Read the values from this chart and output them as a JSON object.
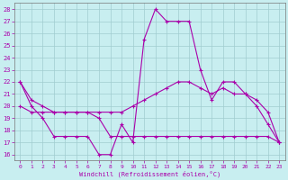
{
  "xlabel": "Windchill (Refroidissement éolien,°C)",
  "bg_color": "#c8eef0",
  "grid_color": "#a0ccd0",
  "line_color": "#aa00aa",
  "x_ticks": [
    0,
    1,
    2,
    3,
    4,
    5,
    6,
    7,
    8,
    9,
    10,
    11,
    12,
    13,
    14,
    15,
    16,
    17,
    18,
    19,
    20,
    21,
    22,
    23
  ],
  "y_ticks": [
    16,
    17,
    18,
    19,
    20,
    21,
    22,
    23,
    24,
    25,
    26,
    27,
    28
  ],
  "ylim": [
    15.5,
    28.5
  ],
  "xlim": [
    -0.5,
    23.5
  ],
  "line1_x": [
    0,
    1,
    2,
    3,
    4,
    5,
    6,
    7,
    8,
    9,
    10,
    11,
    12,
    13,
    14,
    15,
    16,
    17,
    18,
    19,
    20,
    21,
    22,
    23
  ],
  "line1_y": [
    22.0,
    20.0,
    19.0,
    17.5,
    17.5,
    17.5,
    17.5,
    16.0,
    16.0,
    18.5,
    17.0,
    25.5,
    28.0,
    27.0,
    27.0,
    27.0,
    23.0,
    20.5,
    22.0,
    22.0,
    21.0,
    20.0,
    18.5,
    17.0
  ],
  "line2_x": [
    0,
    1,
    2,
    3,
    4,
    5,
    6,
    7,
    8,
    9,
    10,
    11,
    12,
    13,
    14,
    15,
    16,
    17,
    18,
    19,
    20,
    21,
    22,
    23
  ],
  "line2_y": [
    22.0,
    20.5,
    20.0,
    19.5,
    19.5,
    19.5,
    19.5,
    19.5,
    19.5,
    19.5,
    20.0,
    20.5,
    21.0,
    21.5,
    22.0,
    22.0,
    21.5,
    21.0,
    21.5,
    21.0,
    21.0,
    20.5,
    19.5,
    17.0
  ],
  "line3_x": [
    0,
    1,
    2,
    3,
    4,
    5,
    6,
    7,
    8,
    9,
    10,
    11,
    12,
    13,
    14,
    15,
    16,
    17,
    18,
    19,
    20,
    21,
    22,
    23
  ],
  "line3_y": [
    20.0,
    19.5,
    19.5,
    19.5,
    19.5,
    19.5,
    19.5,
    19.0,
    17.5,
    17.5,
    17.5,
    17.5,
    17.5,
    17.5,
    17.5,
    17.5,
    17.5,
    17.5,
    17.5,
    17.5,
    17.5,
    17.5,
    17.5,
    17.0
  ]
}
